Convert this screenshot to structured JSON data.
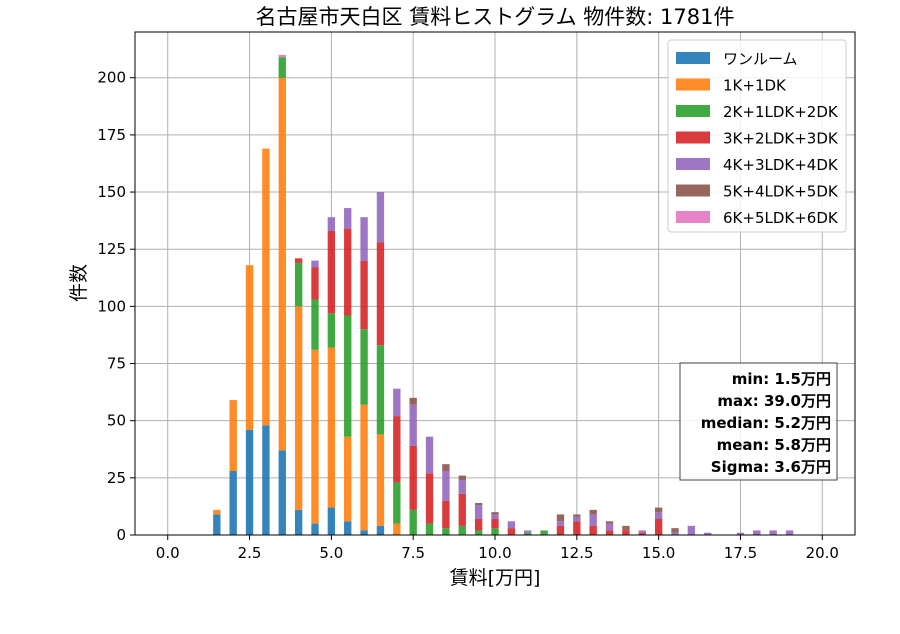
{
  "chart_data": {
    "type": "bar",
    "stacked": true,
    "title": "名古屋市天白区 賃料ヒストグラム 物件数: 1781件",
    "xlabel": "賃料[万円]",
    "ylabel": "件数",
    "xlim": [
      -1.0,
      21.0
    ],
    "ylim": [
      0,
      220
    ],
    "xticks": [
      0.0,
      2.5,
      5.0,
      7.5,
      10.0,
      12.5,
      15.0,
      17.5,
      20.0
    ],
    "xtick_labels": [
      "0.0",
      "2.5",
      "5.0",
      "7.5",
      "10.0",
      "12.5",
      "15.0",
      "17.5",
      "20.0"
    ],
    "yticks": [
      0,
      25,
      50,
      75,
      100,
      125,
      150,
      175,
      200
    ],
    "ytick_labels": [
      "0",
      "25",
      "50",
      "75",
      "100",
      "125",
      "150",
      "175",
      "200"
    ],
    "grid": true,
    "legend_position": "top-right",
    "bin_width": 0.25,
    "x": [
      1.5,
      2.0,
      2.5,
      3.0,
      3.5,
      4.0,
      4.5,
      5.0,
      5.5,
      6.0,
      6.5,
      7.0,
      7.5,
      8.0,
      8.5,
      9.0,
      9.5,
      10.0,
      10.5,
      11.0,
      11.5,
      12.0,
      12.5,
      13.0,
      13.5,
      14.0,
      14.5,
      15.0,
      15.5,
      16.0,
      16.5,
      17.0,
      17.5,
      18.0,
      18.5,
      19.0,
      19.5
    ],
    "series": [
      {
        "name": "ワンルーム",
        "color": "#1f77b4",
        "values": [
          9,
          28,
          46,
          48,
          37,
          11,
          5,
          12,
          6,
          2,
          4,
          0,
          0,
          0,
          0,
          0,
          0,
          0,
          0,
          0,
          0,
          0,
          0,
          0,
          0,
          0,
          0,
          0,
          0,
          0,
          0,
          0,
          0,
          0,
          0,
          0,
          0
        ]
      },
      {
        "name": "1K+1DK",
        "color": "#ff7f0e",
        "values": [
          2,
          31,
          72,
          121,
          163,
          89,
          76,
          70,
          37,
          55,
          40,
          5,
          0,
          0,
          0,
          0,
          0,
          0,
          0,
          0,
          0,
          0,
          0,
          0,
          0,
          0,
          0,
          0,
          0,
          0,
          0,
          0,
          0,
          0,
          0,
          0,
          0
        ]
      },
      {
        "name": "2K+1LDK+2DK",
        "color": "#2ca02c",
        "values": [
          0,
          0,
          0,
          0,
          9,
          19,
          22,
          15,
          53,
          33,
          39,
          18,
          11,
          5,
          3,
          4,
          2,
          3,
          0,
          1,
          2,
          0,
          0,
          0,
          0,
          0,
          0,
          0,
          0,
          0,
          0,
          0,
          0,
          0,
          0,
          0,
          0
        ]
      },
      {
        "name": "3K+2LDK+3DK",
        "color": "#d62728",
        "values": [
          0,
          0,
          0,
          0,
          0,
          2,
          14,
          36,
          38,
          30,
          45,
          29,
          28,
          22,
          12,
          14,
          5,
          4,
          3,
          0,
          0,
          4,
          6,
          4,
          2,
          2,
          1,
          7,
          0,
          0,
          0,
          0,
          0,
          0,
          0,
          0,
          0
        ]
      },
      {
        "name": "4K+3LDK+4DK",
        "color": "#9467bd",
        "values": [
          0,
          0,
          0,
          0,
          0,
          0,
          3,
          6,
          9,
          19,
          22,
          12,
          18,
          16,
          13,
          6,
          6,
          2,
          3,
          1,
          0,
          2,
          2,
          5,
          3,
          0,
          1,
          3,
          1,
          4,
          1,
          0,
          1,
          2,
          2,
          2,
          0
        ]
      },
      {
        "name": "5K+4LDK+5DK",
        "color": "#8c564b",
        "values": [
          0,
          0,
          0,
          0,
          0,
          0,
          0,
          0,
          0,
          0,
          0,
          0,
          3,
          0,
          3,
          2,
          1,
          1,
          0,
          0,
          0,
          3,
          1,
          2,
          1,
          2,
          0,
          2,
          2,
          0,
          0,
          0,
          0,
          0,
          0,
          0,
          0
        ]
      },
      {
        "name": "6K+5LDK+6DK",
        "color": "#e377c2",
        "values": [
          0,
          0,
          0,
          0,
          1,
          0,
          0,
          0,
          0,
          0,
          0,
          0,
          0,
          0,
          0,
          0,
          0,
          0,
          0,
          0,
          0,
          0,
          0,
          0,
          0,
          0,
          0,
          0,
          0,
          0,
          0,
          0,
          0,
          0,
          0,
          0,
          0
        ]
      }
    ],
    "stats_box": [
      "min: 1.5万円",
      "max: 39.0万円",
      "median: 5.2万円",
      "mean: 5.8万円",
      "Sigma: 3.6万円"
    ]
  }
}
